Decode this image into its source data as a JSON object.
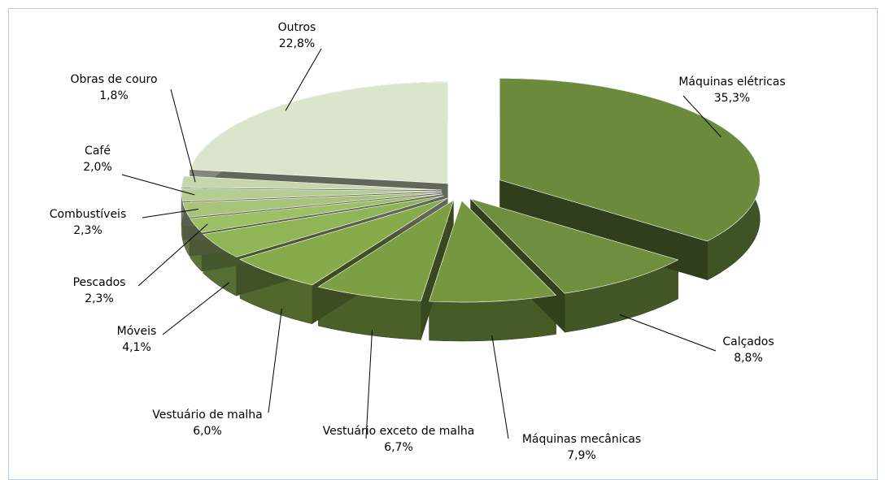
{
  "chart_data": {
    "type": "pie",
    "categories": [
      "Máquinas elétricas",
      "Calçados",
      "Máquinas mecânicas",
      "Vestuário exceto de malha",
      "Vestuário de malha",
      "Móveis",
      "Pescados",
      "Combustíveis",
      "Café",
      "Obras de couro",
      "Outros"
    ],
    "values": [
      35.3,
      8.8,
      7.9,
      6.7,
      6.0,
      4.1,
      2.3,
      2.3,
      2.0,
      1.8,
      22.8
    ],
    "value_labels": [
      "35,3%",
      "8,8%",
      "7,9%",
      "6,7%",
      "6,0%",
      "4,1%",
      "2,3%",
      "2,3%",
      "2,0%",
      "1,8%",
      "22,8%"
    ],
    "colors": [
      "#6b8a3c",
      "#6f8f3e",
      "#76973f",
      "#7d9f44",
      "#87ab4a",
      "#8fb556",
      "#9cc063",
      "#a8c47a",
      "#b6cd92",
      "#c6d8ab",
      "#dae5cc"
    ]
  }
}
